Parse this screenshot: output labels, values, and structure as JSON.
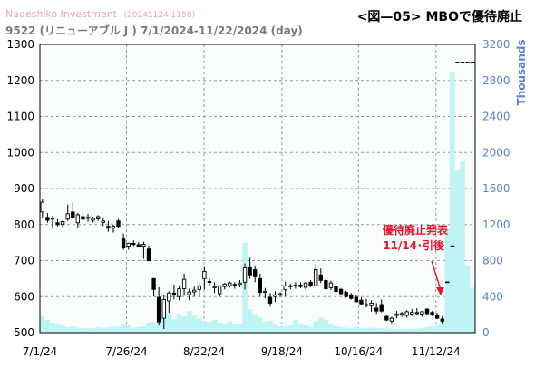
{
  "header": {
    "source": "Nadeshiko Investment",
    "stamp": "(20241124 1158)",
    "title": "9522 (リニューアブル J ) 7/1/2024-11/22/2024 (day)",
    "figure_label": "<図—05> MBOで優待廃止"
  },
  "chart_data": {
    "type": "candlestick+volume",
    "ylim": [
      500,
      1300
    ],
    "yticks": [
      500,
      600,
      700,
      800,
      900,
      1000,
      1100,
      1200,
      1300
    ],
    "y2label": "Thousands",
    "y2lim": [
      0,
      3200
    ],
    "y2ticks": [
      0,
      400,
      800,
      1200,
      1600,
      2000,
      2400,
      2800,
      3200
    ],
    "xtick_labels": [
      "7/1/24",
      "7/26/24",
      "8/22/24",
      "9/18/24",
      "10/16/24",
      "11/12/24"
    ],
    "grid": true,
    "annotation": {
      "line1": "優待廃止発表",
      "line2": "11/14･引後"
    },
    "ohlc": [
      {
        "o": 835,
        "h": 870,
        "l": 820,
        "c": 862
      },
      {
        "o": 820,
        "h": 832,
        "l": 805,
        "c": 812
      },
      {
        "o": 815,
        "h": 825,
        "l": 790,
        "c": 818
      },
      {
        "o": 805,
        "h": 815,
        "l": 795,
        "c": 800
      },
      {
        "o": 800,
        "h": 812,
        "l": 792,
        "c": 808
      },
      {
        "o": 815,
        "h": 855,
        "l": 810,
        "c": 830
      },
      {
        "o": 835,
        "h": 862,
        "l": 815,
        "c": 820
      },
      {
        "o": 805,
        "h": 832,
        "l": 790,
        "c": 827
      },
      {
        "o": 822,
        "h": 840,
        "l": 812,
        "c": 815
      },
      {
        "o": 818,
        "h": 830,
        "l": 808,
        "c": 820
      },
      {
        "o": 812,
        "h": 822,
        "l": 806,
        "c": 817
      },
      {
        "o": 816,
        "h": 826,
        "l": 810,
        "c": 822
      },
      {
        "o": 806,
        "h": 820,
        "l": 796,
        "c": 810
      },
      {
        "o": 795,
        "h": 810,
        "l": 780,
        "c": 790
      },
      {
        "o": 790,
        "h": 800,
        "l": 778,
        "c": 795
      },
      {
        "o": 810,
        "h": 815,
        "l": 790,
        "c": 795
      },
      {
        "o": 760,
        "h": 775,
        "l": 730,
        "c": 735
      },
      {
        "o": 740,
        "h": 750,
        "l": 730,
        "c": 748
      },
      {
        "o": 748,
        "h": 756,
        "l": 740,
        "c": 745
      },
      {
        "o": 744,
        "h": 752,
        "l": 736,
        "c": 740
      },
      {
        "o": 740,
        "h": 752,
        "l": 705,
        "c": 745
      },
      {
        "o": 732,
        "h": 742,
        "l": 698,
        "c": 700
      },
      {
        "o": 650,
        "h": 652,
        "l": 600,
        "c": 620
      },
      {
        "o": 598,
        "h": 626,
        "l": 520,
        "c": 530
      },
      {
        "o": 540,
        "h": 605,
        "l": 510,
        "c": 592
      },
      {
        "o": 588,
        "h": 615,
        "l": 555,
        "c": 610
      },
      {
        "o": 610,
        "h": 634,
        "l": 592,
        "c": 605
      },
      {
        "o": 600,
        "h": 630,
        "l": 590,
        "c": 622
      },
      {
        "o": 622,
        "h": 664,
        "l": 602,
        "c": 648
      },
      {
        "o": 605,
        "h": 622,
        "l": 590,
        "c": 613
      },
      {
        "o": 613,
        "h": 628,
        "l": 600,
        "c": 618
      },
      {
        "o": 620,
        "h": 635,
        "l": 600,
        "c": 630
      },
      {
        "o": 650,
        "h": 682,
        "l": 620,
        "c": 670
      },
      {
        "o": 640,
        "h": 650,
        "l": 630,
        "c": 642
      },
      {
        "o": 625,
        "h": 640,
        "l": 610,
        "c": 628
      },
      {
        "o": 608,
        "h": 632,
        "l": 600,
        "c": 630
      },
      {
        "o": 628,
        "h": 638,
        "l": 620,
        "c": 635
      },
      {
        "o": 630,
        "h": 642,
        "l": 625,
        "c": 638
      },
      {
        "o": 632,
        "h": 640,
        "l": 622,
        "c": 634
      },
      {
        "o": 634,
        "h": 646,
        "l": 626,
        "c": 638
      },
      {
        "o": 640,
        "h": 692,
        "l": 620,
        "c": 680
      },
      {
        "o": 680,
        "h": 708,
        "l": 650,
        "c": 660
      },
      {
        "o": 675,
        "h": 684,
        "l": 640,
        "c": 655
      },
      {
        "o": 650,
        "h": 664,
        "l": 600,
        "c": 612
      },
      {
        "o": 612,
        "h": 624,
        "l": 595,
        "c": 615
      },
      {
        "o": 598,
        "h": 610,
        "l": 572,
        "c": 582
      },
      {
        "o": 600,
        "h": 615,
        "l": 585,
        "c": 605
      },
      {
        "o": 605,
        "h": 612,
        "l": 600,
        "c": 608
      },
      {
        "o": 620,
        "h": 642,
        "l": 600,
        "c": 630
      },
      {
        "o": 628,
        "h": 636,
        "l": 620,
        "c": 630
      },
      {
        "o": 630,
        "h": 640,
        "l": 622,
        "c": 632
      },
      {
        "o": 632,
        "h": 640,
        "l": 624,
        "c": 628
      },
      {
        "o": 626,
        "h": 640,
        "l": 620,
        "c": 638
      },
      {
        "o": 640,
        "h": 646,
        "l": 626,
        "c": 630
      },
      {
        "o": 630,
        "h": 690,
        "l": 630,
        "c": 675
      },
      {
        "o": 660,
        "h": 678,
        "l": 638,
        "c": 645
      },
      {
        "o": 645,
        "h": 650,
        "l": 618,
        "c": 622
      },
      {
        "o": 625,
        "h": 644,
        "l": 618,
        "c": 638
      },
      {
        "o": 628,
        "h": 636,
        "l": 610,
        "c": 614
      },
      {
        "o": 620,
        "h": 624,
        "l": 605,
        "c": 608
      },
      {
        "o": 612,
        "h": 616,
        "l": 597,
        "c": 600
      },
      {
        "o": 605,
        "h": 610,
        "l": 592,
        "c": 595
      },
      {
        "o": 598,
        "h": 604,
        "l": 584,
        "c": 586
      },
      {
        "o": 590,
        "h": 598,
        "l": 576,
        "c": 580
      },
      {
        "o": 578,
        "h": 594,
        "l": 570,
        "c": 576
      },
      {
        "o": 575,
        "h": 590,
        "l": 558,
        "c": 582
      },
      {
        "o": 568,
        "h": 582,
        "l": 552,
        "c": 560
      },
      {
        "o": 578,
        "h": 592,
        "l": 556,
        "c": 560
      },
      {
        "o": 545,
        "h": 548,
        "l": 532,
        "c": 535
      },
      {
        "o": 532,
        "h": 544,
        "l": 526,
        "c": 540
      },
      {
        "o": 548,
        "h": 560,
        "l": 540,
        "c": 552
      },
      {
        "o": 550,
        "h": 558,
        "l": 544,
        "c": 553
      },
      {
        "o": 548,
        "h": 562,
        "l": 542,
        "c": 558
      },
      {
        "o": 552,
        "h": 565,
        "l": 546,
        "c": 556
      },
      {
        "o": 556,
        "h": 568,
        "l": 548,
        "c": 553
      },
      {
        "o": 552,
        "h": 560,
        "l": 544,
        "c": 558
      },
      {
        "o": 565,
        "h": 568,
        "l": 550,
        "c": 553
      },
      {
        "o": 556,
        "h": 560,
        "l": 546,
        "c": 550
      },
      {
        "o": 548,
        "h": 555,
        "l": 538,
        "c": 540
      },
      {
        "o": 538,
        "h": 546,
        "l": 525,
        "c": 532
      },
      {
        "o": 640,
        "h": 640,
        "l": 640,
        "c": 640
      },
      {
        "o": 740,
        "h": 740,
        "l": 740,
        "c": 740
      },
      {
        "o": 1250,
        "h": 1250,
        "l": 1250,
        "c": 1250
      },
      {
        "o": 1250,
        "h": 1250,
        "l": 1250,
        "c": 1250
      },
      {
        "o": 1250,
        "h": 1250,
        "l": 1250,
        "c": 1250
      },
      {
        "o": 1250,
        "h": 1250,
        "l": 1250,
        "c": 1250
      }
    ],
    "volume_thousands": [
      180,
      140,
      110,
      95,
      80,
      60,
      70,
      55,
      50,
      48,
      45,
      60,
      52,
      58,
      70,
      65,
      95,
      80,
      55,
      60,
      70,
      110,
      120,
      380,
      330,
      220,
      150,
      210,
      180,
      240,
      200,
      160,
      130,
      120,
      140,
      110,
      95,
      120,
      100,
      90,
      1000,
      260,
      190,
      170,
      120,
      130,
      90,
      70,
      65,
      80,
      140,
      100,
      80,
      60,
      130,
      170,
      140,
      90,
      70,
      60,
      55,
      50,
      60,
      52,
      48,
      55,
      50,
      48,
      45,
      42,
      40,
      38,
      40,
      42,
      45,
      50,
      60,
      70,
      80,
      140,
      1150,
      2900,
      1800,
      1900,
      750,
      500
    ]
  }
}
